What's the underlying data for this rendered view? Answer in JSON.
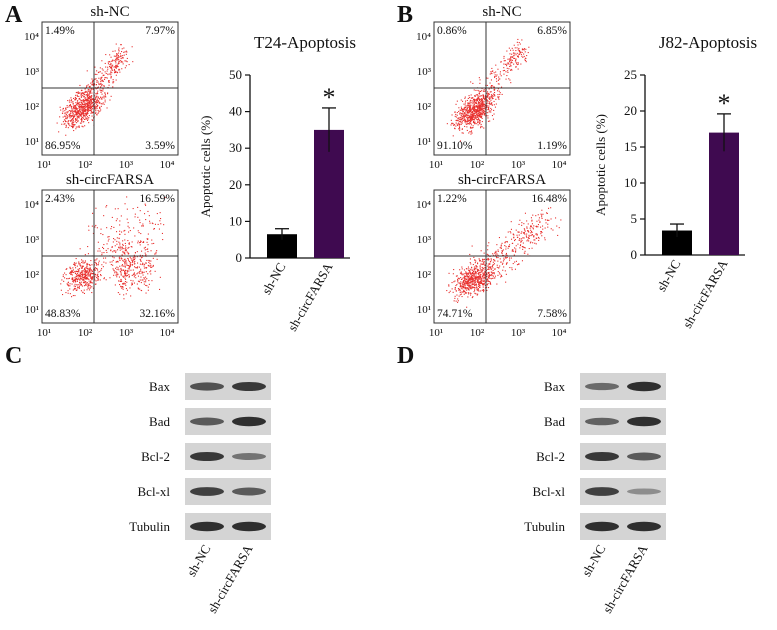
{
  "panels": [
    {
      "label": "A",
      "flow": [
        {
          "title": "sh-NC",
          "quadrants": [
            "1.49%",
            "7.97%",
            "86.95%",
            "3.59%"
          ]
        },
        {
          "title": "sh-circFARSA",
          "quadrants": [
            "2.43%",
            "16.59%",
            "48.83%",
            "32.16%"
          ]
        }
      ],
      "flow_ticks": [
        "10¹",
        "10²",
        "10³",
        "10⁴"
      ]
    },
    {
      "label": "B",
      "flow": [
        {
          "title": "sh-NC",
          "quadrants": [
            "0.86%",
            "6.85%",
            "91.10%",
            "1.19%"
          ]
        },
        {
          "title": "sh-circFARSA",
          "quadrants": [
            "1.22%",
            "16.48%",
            "74.71%",
            "7.58%"
          ]
        }
      ],
      "flow_ticks": [
        "10¹",
        "10²",
        "10³",
        "10⁴"
      ]
    }
  ],
  "chart_data": [
    {
      "type": "bar",
      "title": "T24-Apoptosis",
      "y_label": "Apoptotic cells (%)",
      "categories": [
        "sh-NC",
        "sh-circFARSA"
      ],
      "values": [
        6.5,
        35
      ],
      "errors": [
        1.5,
        6
      ],
      "colors": [
        "#000000",
        "#3f0a50"
      ],
      "annotation": "*",
      "ylim": [
        0,
        50
      ],
      "yticks": [
        0,
        10,
        20,
        30,
        40,
        50
      ]
    },
    {
      "type": "bar",
      "title": "J82-Apoptosis",
      "y_label": "Apoptotic cells (%)",
      "categories": [
        "sh-NC",
        "sh-circFARSA"
      ],
      "values": [
        3.4,
        17
      ],
      "errors": [
        0.9,
        2.6
      ],
      "colors": [
        "#000000",
        "#3f0a50"
      ],
      "annotation": "*",
      "ylim": [
        0,
        25
      ],
      "yticks": [
        0,
        5,
        10,
        15,
        20,
        25
      ]
    }
  ],
  "blots": [
    {
      "label": "C",
      "proteins": [
        "Bax",
        "Bad",
        "Bcl-2",
        "Bcl-xl",
        "Tubulin"
      ],
      "lanes": [
        "sh-NC",
        "sh-circFARSA"
      ]
    },
    {
      "label": "D",
      "proteins": [
        "Bax",
        "Bad",
        "Bcl-2",
        "Bcl-xl",
        "Tubulin"
      ],
      "lanes": [
        "sh-NC",
        "sh-circFARSA"
      ]
    }
  ]
}
